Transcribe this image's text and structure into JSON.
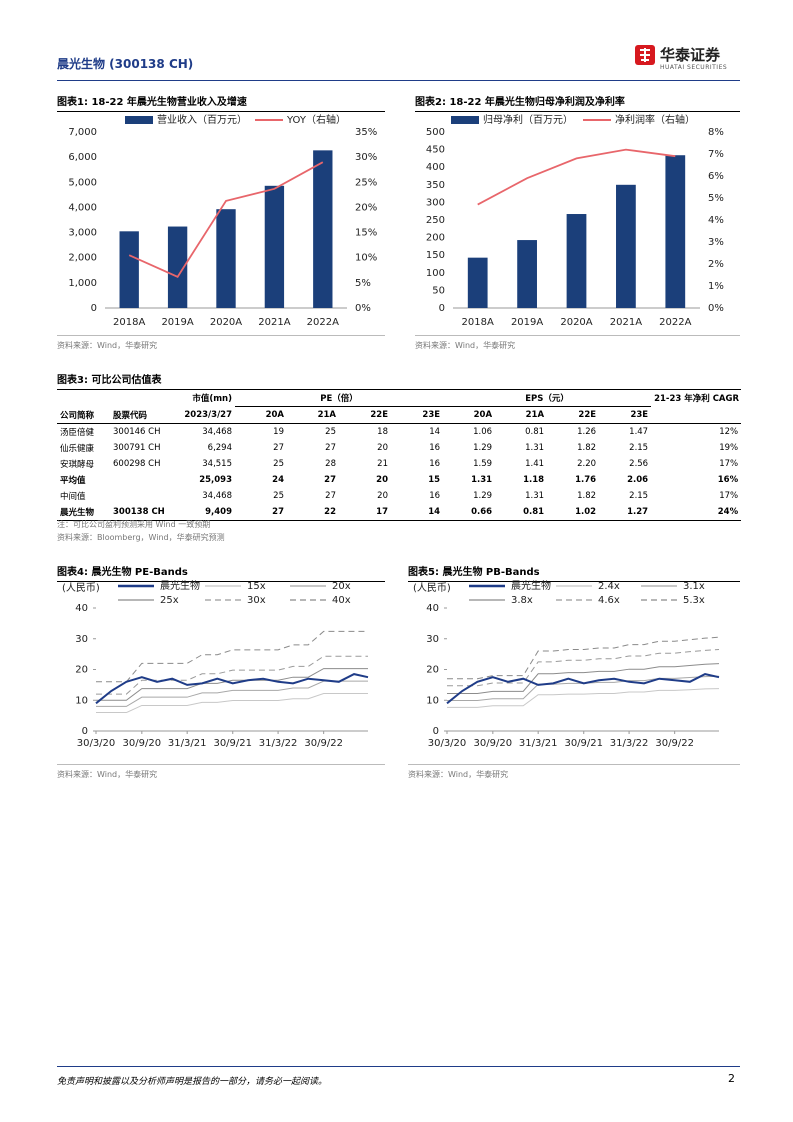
{
  "header": {
    "title": "晨光生物 (300138 CH)",
    "logo_text": "华泰证券",
    "logo_subtext": "HUATAI SECURITIES"
  },
  "chart_data": [
    {
      "type": "bar",
      "title": "图表1:  18-22 年晨光生物营业收入及增速",
      "categories": [
        "2018A",
        "2019A",
        "2020A",
        "2021A",
        "2022A"
      ],
      "series": [
        {
          "name": "营业收入（百万元）",
          "color": "#1b3f7a",
          "values": [
            3050,
            3240,
            3930,
            4860,
            6270
          ]
        },
        {
          "name": "YOY（右轴）",
          "color": "#e8666b",
          "axis": "y2",
          "values": [
            10.5,
            6.2,
            21.3,
            23.7,
            29.0
          ]
        }
      ],
      "ylim": [
        0,
        7000
      ],
      "yticks": [
        0,
        {
          "value": 1000,
          "label": "1,000"
        },
        {
          "value": 2000,
          "label": "2,000"
        },
        {
          "value": 3000,
          "label": "3,000"
        },
        {
          "value": 4000,
          "label": "4,000"
        },
        {
          "value": 5000,
          "label": "5,000"
        },
        {
          "value": 6000,
          "label": "6,000"
        },
        {
          "value": 7000,
          "label": "7,000"
        }
      ],
      "y2lim": [
        0,
        35
      ],
      "y2ticks": [
        {
          "value": 0,
          "label": "0%"
        },
        {
          "value": 5,
          "label": "5%"
        },
        {
          "value": 10,
          "label": "10%"
        },
        {
          "value": 15,
          "label": "15%"
        },
        {
          "value": 20,
          "label": "20%"
        },
        {
          "value": 25,
          "label": "25%"
        },
        {
          "value": 30,
          "label": "30%"
        },
        {
          "value": 35,
          "label": "35%"
        }
      ],
      "source": "资料来源：Wind，华泰研究"
    },
    {
      "type": "bar",
      "title": "图表2:  18-22 年晨光生物归母净利润及净利率",
      "categories": [
        "2018A",
        "2019A",
        "2020A",
        "2021A",
        "2022A"
      ],
      "series": [
        {
          "name": "归母净利（百万元）",
          "color": "#1b3f7a",
          "values": [
            143,
            193,
            267,
            350,
            434
          ]
        },
        {
          "name": "净利润率（右轴）",
          "color": "#e8666b",
          "axis": "y2",
          "values": [
            4.7,
            5.9,
            6.8,
            7.2,
            6.9
          ]
        }
      ],
      "ylim": [
        0,
        500
      ],
      "yticks": [
        0,
        50,
        100,
        150,
        200,
        250,
        300,
        350,
        400,
        450,
        500
      ],
      "y2lim": [
        0,
        8
      ],
      "y2ticks": [
        {
          "value": 0,
          "label": "0%"
        },
        {
          "value": 1,
          "label": "1%"
        },
        {
          "value": 2,
          "label": "2%"
        },
        {
          "value": 3,
          "label": "3%"
        },
        {
          "value": 4,
          "label": "4%"
        },
        {
          "value": 5,
          "label": "5%"
        },
        {
          "value": 6,
          "label": "6%"
        },
        {
          "value": 7,
          "label": "7%"
        },
        {
          "value": 8,
          "label": "8%"
        }
      ],
      "source": "资料来源：Wind，华泰研究"
    },
    {
      "type": "line",
      "title": "图表4:  晨光生物 PE-Bands",
      "y_label": "(人民币)",
      "x": [
        "2020-03-30",
        "2020-05-30",
        "2020-07-30",
        "2020-09-30",
        "2020-11-30",
        "2021-01-30",
        "2021-03-31",
        "2021-05-30",
        "2021-07-30",
        "2021-09-30",
        "2021-11-30",
        "2022-01-30",
        "2022-03-31",
        "2022-05-30",
        "2022-07-30",
        "2022-09-30",
        "2022-11-30",
        "2023-01-30",
        "2023-03-27"
      ],
      "xlim": [
        "2020-03-30",
        "2023-03-27"
      ],
      "xticks": [
        {
          "value": "2020-03-30",
          "label": "30/3/20"
        },
        {
          "value": "2020-09-30",
          "label": "30/9/20"
        },
        {
          "value": "2021-03-31",
          "label": "31/3/21"
        },
        {
          "value": "2021-09-30",
          "label": "30/9/21"
        },
        {
          "value": "2022-03-31",
          "label": "31/3/22"
        },
        {
          "value": "2022-09-30",
          "label": "30/9/22"
        }
      ],
      "ylim": [
        0,
        40
      ],
      "yticks": [
        0,
        10,
        20,
        30,
        40
      ],
      "series": [
        {
          "name": "晨光生物",
          "color": "#1f3c88",
          "values": [
            9,
            13,
            16,
            17.5,
            16,
            17,
            15,
            15.5,
            17,
            15.5,
            16.5,
            17,
            16,
            15.5,
            17,
            16.5,
            16,
            18.5,
            17.5
          ]
        },
        {
          "name": "15x",
          "color": "#c8c8c8",
          "values": [
            6,
            6,
            6,
            8.3,
            8.3,
            8.3,
            8.3,
            9.3,
            9.3,
            9.9,
            9.9,
            9.9,
            9.9,
            10.5,
            10.5,
            12.2,
            12.2,
            12.2,
            12.2
          ]
        },
        {
          "name": "20x",
          "color": "#a8a8a8",
          "values": [
            8,
            8,
            8,
            11,
            11,
            11,
            11,
            12.4,
            12.4,
            13.2,
            13.2,
            13.2,
            13.2,
            14,
            14,
            16.2,
            16.2,
            16.2,
            16.2
          ]
        },
        {
          "name": "25x",
          "color": "#8c8c8c",
          "values": [
            10,
            10,
            10,
            13.8,
            13.8,
            13.8,
            13.8,
            15.5,
            15.5,
            16.5,
            16.5,
            16.5,
            16.5,
            17.5,
            17.5,
            20.3,
            20.3,
            20.3,
            20.3
          ]
        },
        {
          "name": "30x",
          "color": "#9a9a9a",
          "dashed": true,
          "values": [
            12,
            12,
            12,
            16.5,
            16.5,
            16.5,
            16.5,
            18.6,
            18.6,
            19.8,
            19.8,
            19.8,
            19.8,
            21,
            21,
            24.3,
            24.3,
            24.3,
            24.3
          ]
        },
        {
          "name": "40x",
          "color": "#8a8a8a",
          "dashed": true,
          "values": [
            16,
            16,
            16,
            22,
            22,
            22,
            22,
            24.8,
            24.8,
            26.4,
            26.4,
            26.4,
            26.4,
            28,
            28,
            32.4,
            32.4,
            32.4,
            32.4
          ]
        }
      ],
      "source": "资料来源：Wind，华泰研究"
    },
    {
      "type": "line",
      "title": "图表5:  晨光生物 PB-Bands",
      "y_label": "(人民币)",
      "x": [
        "2020-03-30",
        "2020-05-30",
        "2020-07-30",
        "2020-09-30",
        "2020-11-30",
        "2021-01-30",
        "2021-03-31",
        "2021-05-30",
        "2021-07-30",
        "2021-09-30",
        "2021-11-30",
        "2022-01-30",
        "2022-03-31",
        "2022-05-30",
        "2022-07-30",
        "2022-09-30",
        "2022-11-30",
        "2023-01-30",
        "2023-03-27"
      ],
      "xlim": [
        "2020-03-30",
        "2023-03-27"
      ],
      "xticks": [
        {
          "value": "2020-03-30",
          "label": "30/3/20"
        },
        {
          "value": "2020-09-30",
          "label": "30/9/20"
        },
        {
          "value": "2021-03-31",
          "label": "31/3/21"
        },
        {
          "value": "2021-09-30",
          "label": "30/9/21"
        },
        {
          "value": "2022-03-31",
          "label": "31/3/22"
        },
        {
          "value": "2022-09-30",
          "label": "30/9/22"
        }
      ],
      "ylim": [
        0,
        40
      ],
      "yticks": [
        0,
        10,
        20,
        30,
        40
      ],
      "series": [
        {
          "name": "晨光生物",
          "color": "#1f3c88",
          "values": [
            9,
            13,
            16,
            17.5,
            16,
            17,
            15,
            15.5,
            17,
            15.5,
            16.5,
            17,
            16,
            15.5,
            17,
            16.5,
            16,
            18.5,
            17.5
          ]
        },
        {
          "name": "2.4x",
          "color": "#c8c8c8",
          "values": [
            7.7,
            7.7,
            7.7,
            8.2,
            8.2,
            8.2,
            11.8,
            11.8,
            12,
            12,
            12.2,
            12.2,
            12.7,
            12.7,
            13.2,
            13.2,
            13.4,
            13.7,
            13.8
          ]
        },
        {
          "name": "3.1x",
          "color": "#a8a8a8",
          "values": [
            9.9,
            9.9,
            9.9,
            10.5,
            10.5,
            10.5,
            15.2,
            15.2,
            15.5,
            15.5,
            15.8,
            15.8,
            16.4,
            16.4,
            17.1,
            17.1,
            17.4,
            17.7,
            17.8
          ]
        },
        {
          "name": "3.8x",
          "color": "#8c8c8c",
          "values": [
            12.2,
            12.2,
            12.2,
            12.9,
            12.9,
            12.9,
            18.6,
            18.6,
            19,
            19,
            19.4,
            19.4,
            20.1,
            20.1,
            20.9,
            20.9,
            21.3,
            21.7,
            21.9
          ]
        },
        {
          "name": "4.6x",
          "color": "#9a9a9a",
          "dashed": true,
          "values": [
            14.7,
            14.7,
            14.7,
            15.6,
            15.6,
            15.6,
            22.5,
            22.5,
            23,
            23,
            23.5,
            23.5,
            24.4,
            24.4,
            25.3,
            25.3,
            25.8,
            26.2,
            26.5
          ]
        },
        {
          "name": "5.3x",
          "color": "#8a8a8a",
          "dashed": true,
          "values": [
            17,
            17,
            17,
            18,
            18,
            18,
            26,
            26,
            26.5,
            26.5,
            27,
            27,
            28.1,
            28.1,
            29.2,
            29.2,
            29.7,
            30.2,
            30.5
          ]
        }
      ],
      "source": "资料来源：Wind，华泰研究"
    }
  ],
  "table": {
    "title": "图表3:  可比公司估值表",
    "header_top": [
      "市值(mn)",
      "PE（倍）",
      "EPS（元）",
      "21-23 年净利 CAGR"
    ],
    "header": [
      "公司简称",
      "股票代码",
      "2023/3/27",
      "20A",
      "21A",
      "22E",
      "23E",
      "20A",
      "21A",
      "22E",
      "23E"
    ],
    "rows": [
      [
        "汤臣倍健",
        "300146 CH",
        "34,468",
        "19",
        "25",
        "18",
        "14",
        "1.06",
        "0.81",
        "1.26",
        "1.47",
        "12%"
      ],
      [
        "仙乐健康",
        "300791 CH",
        "6,294",
        "27",
        "27",
        "20",
        "16",
        "1.29",
        "1.31",
        "1.82",
        "2.15",
        "19%"
      ],
      [
        "安琪酵母",
        "600298 CH",
        "34,515",
        "25",
        "28",
        "21",
        "16",
        "1.59",
        "1.41",
        "2.20",
        "2.56",
        "17%"
      ],
      [
        "平均值",
        null,
        "25,093",
        "24",
        "27",
        "20",
        "15",
        "1.31",
        "1.18",
        "1.76",
        "2.06",
        "16%"
      ],
      [
        "中间值",
        null,
        "34,468",
        "25",
        "27",
        "20",
        "16",
        "1.29",
        "1.31",
        "1.82",
        "2.15",
        "17%"
      ],
      [
        "晨光生物",
        "300138 CH",
        "9,409",
        "27",
        "22",
        "17",
        "14",
        "0.66",
        "0.81",
        "1.02",
        "1.27",
        "24%"
      ]
    ],
    "bold_rows": [
      3,
      5
    ],
    "notes": [
      "注：可比公司盈利预测采用 Wind 一致预期",
      "资料来源：Bloomberg，Wind，华泰研究预测"
    ]
  },
  "footer": {
    "disclaimer": "免责声明和披露以及分析师声明是报告的一部分，请务必一起阅读。",
    "page": "2"
  }
}
